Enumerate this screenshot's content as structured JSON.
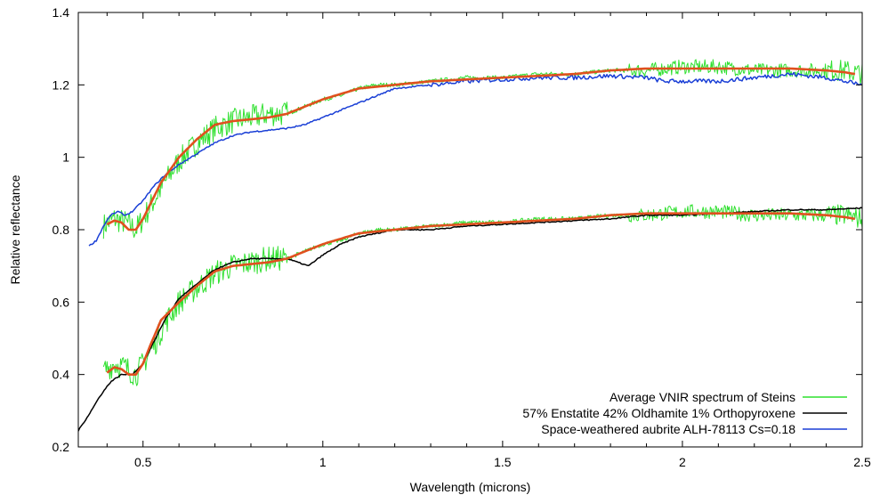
{
  "chart_data": {
    "type": "line",
    "title": "",
    "xlabel": "Wavelength (microns)",
    "ylabel": "Relative reflectance",
    "xlim": [
      0.32,
      2.5
    ],
    "ylim": [
      0.2,
      1.4
    ],
    "x_ticks": [
      0.5,
      1,
      1.5,
      2,
      2.5
    ],
    "x_tick_labels": [
      "0.5",
      "1",
      "1.5",
      "2",
      "2.5"
    ],
    "y_ticks": [
      0.2,
      0.4,
      0.6,
      0.8,
      1.0,
      1.2,
      1.4
    ],
    "y_tick_labels": [
      "0.2",
      "0.4",
      "0.6",
      "0.8",
      "1",
      "1.2",
      "1.4"
    ],
    "grid": false,
    "legend_position": "bottom-right",
    "series": [
      {
        "name": "Average VNIR spectrum of Steins",
        "color": "#2fe02f",
        "role": "upper",
        "noisy": true,
        "x": [
          0.39,
          0.42,
          0.45,
          0.48,
          0.5,
          0.53,
          0.56,
          0.6,
          0.65,
          0.7,
          0.75,
          0.8,
          0.85,
          0.9,
          0.95,
          1.0,
          1.05,
          1.1,
          1.15,
          1.2,
          1.3,
          1.4,
          1.5,
          1.6,
          1.7,
          1.8,
          1.9,
          2.0,
          2.1,
          2.2,
          2.3,
          2.4,
          2.45,
          2.5
        ],
        "y": [
          0.81,
          0.83,
          0.82,
          0.8,
          0.83,
          0.88,
          0.93,
          0.99,
          1.04,
          1.08,
          1.1,
          1.11,
          1.12,
          1.12,
          1.14,
          1.16,
          1.17,
          1.19,
          1.2,
          1.2,
          1.21,
          1.22,
          1.22,
          1.23,
          1.23,
          1.24,
          1.24,
          1.25,
          1.25,
          1.24,
          1.24,
          1.24,
          1.24,
          1.23
        ]
      },
      {
        "name": "Average VNIR spectrum of Steins",
        "color": "#2fe02f",
        "role": "lower",
        "noisy": true,
        "x": [
          0.39,
          0.42,
          0.45,
          0.48,
          0.5,
          0.53,
          0.56,
          0.6,
          0.65,
          0.7,
          0.75,
          0.8,
          0.85,
          0.9,
          0.95,
          1.0,
          1.05,
          1.1,
          1.15,
          1.2,
          1.3,
          1.4,
          1.5,
          1.6,
          1.7,
          1.8,
          1.9,
          2.0,
          2.1,
          2.2,
          2.3,
          2.4,
          2.45,
          2.5
        ],
        "y": [
          0.41,
          0.43,
          0.42,
          0.4,
          0.43,
          0.48,
          0.54,
          0.6,
          0.64,
          0.68,
          0.7,
          0.71,
          0.72,
          0.72,
          0.74,
          0.76,
          0.77,
          0.79,
          0.8,
          0.8,
          0.81,
          0.82,
          0.82,
          0.83,
          0.83,
          0.84,
          0.84,
          0.85,
          0.85,
          0.84,
          0.84,
          0.84,
          0.84,
          0.83
        ]
      },
      {
        "name": "57% Enstatite 42% Oldhamite 1% Orthopyroxene",
        "color": "#000000",
        "x": [
          0.32,
          0.35,
          0.38,
          0.41,
          0.44,
          0.47,
          0.5,
          0.53,
          0.56,
          0.6,
          0.65,
          0.7,
          0.75,
          0.8,
          0.85,
          0.9,
          0.93,
          0.96,
          1.0,
          1.05,
          1.1,
          1.15,
          1.2,
          1.3,
          1.4,
          1.5,
          1.6,
          1.7,
          1.8,
          1.9,
          2.0,
          2.1,
          2.2,
          2.3,
          2.4,
          2.5
        ],
        "y": [
          0.245,
          0.29,
          0.34,
          0.38,
          0.4,
          0.4,
          0.43,
          0.49,
          0.55,
          0.61,
          0.65,
          0.69,
          0.71,
          0.72,
          0.72,
          0.72,
          0.71,
          0.7,
          0.73,
          0.76,
          0.78,
          0.79,
          0.8,
          0.8,
          0.81,
          0.815,
          0.82,
          0.825,
          0.83,
          0.84,
          0.84,
          0.845,
          0.85,
          0.855,
          0.855,
          0.86
        ]
      },
      {
        "name": "Space-weathered aubrite ALH-78113 Cs=0.18",
        "color": "#1a3fd6",
        "x": [
          0.35,
          0.37,
          0.39,
          0.41,
          0.43,
          0.45,
          0.47,
          0.5,
          0.53,
          0.56,
          0.6,
          0.65,
          0.7,
          0.75,
          0.8,
          0.85,
          0.9,
          0.95,
          1.0,
          1.05,
          1.1,
          1.15,
          1.2,
          1.3,
          1.4,
          1.5,
          1.6,
          1.7,
          1.8,
          1.9,
          1.95,
          2.0,
          2.1,
          2.2,
          2.3,
          2.4,
          2.45,
          2.5
        ],
        "y": [
          0.755,
          0.77,
          0.81,
          0.84,
          0.85,
          0.84,
          0.85,
          0.88,
          0.92,
          0.95,
          0.98,
          1.01,
          1.04,
          1.06,
          1.07,
          1.075,
          1.08,
          1.09,
          1.11,
          1.13,
          1.15,
          1.17,
          1.19,
          1.2,
          1.21,
          1.215,
          1.22,
          1.22,
          1.225,
          1.22,
          1.21,
          1.21,
          1.21,
          1.22,
          1.23,
          1.22,
          1.21,
          1.2
        ]
      },
      {
        "name": "",
        "color": "#e0501e",
        "role": "smooth-fit-upper",
        "x": [
          0.4,
          0.42,
          0.44,
          0.46,
          0.48,
          0.5,
          0.52,
          0.55,
          0.6,
          0.65,
          0.7,
          0.75,
          0.8,
          0.85,
          0.9,
          0.95,
          1.0,
          1.05,
          1.1,
          1.15,
          1.2,
          1.3,
          1.4,
          1.5,
          1.6,
          1.7,
          1.8,
          1.9,
          2.0,
          2.1,
          2.2,
          2.3,
          2.4,
          2.45,
          2.48
        ],
        "y": [
          0.815,
          0.825,
          0.82,
          0.8,
          0.8,
          0.83,
          0.87,
          0.93,
          1.0,
          1.05,
          1.09,
          1.1,
          1.105,
          1.11,
          1.12,
          1.14,
          1.16,
          1.175,
          1.19,
          1.195,
          1.2,
          1.21,
          1.215,
          1.22,
          1.225,
          1.23,
          1.24,
          1.245,
          1.245,
          1.245,
          1.245,
          1.245,
          1.24,
          1.235,
          1.23
        ]
      },
      {
        "name": "",
        "color": "#e0501e",
        "role": "smooth-fit-lower",
        "x": [
          0.4,
          0.42,
          0.44,
          0.46,
          0.48,
          0.5,
          0.52,
          0.55,
          0.6,
          0.65,
          0.7,
          0.75,
          0.8,
          0.85,
          0.9,
          0.95,
          1.0,
          1.05,
          1.1,
          1.15,
          1.2,
          1.3,
          1.4,
          1.5,
          1.6,
          1.7,
          1.8,
          1.9,
          2.0,
          2.1,
          2.2,
          2.3,
          2.4,
          2.45,
          2.48
        ],
        "y": [
          0.405,
          0.42,
          0.415,
          0.4,
          0.4,
          0.43,
          0.48,
          0.55,
          0.6,
          0.645,
          0.685,
          0.7,
          0.705,
          0.71,
          0.72,
          0.74,
          0.76,
          0.775,
          0.79,
          0.795,
          0.8,
          0.81,
          0.815,
          0.82,
          0.825,
          0.83,
          0.84,
          0.845,
          0.845,
          0.845,
          0.845,
          0.845,
          0.84,
          0.835,
          0.83
        ]
      }
    ],
    "legend": [
      {
        "label": "Average VNIR spectrum of Steins",
        "color": "#2fe02f"
      },
      {
        "label": "57% Enstatite 42% Oldhamite 1% Orthopyroxene",
        "color": "#000000"
      },
      {
        "label": "Space-weathered aubrite ALH-78113 Cs=0.18",
        "color": "#1a3fd6"
      }
    ]
  }
}
